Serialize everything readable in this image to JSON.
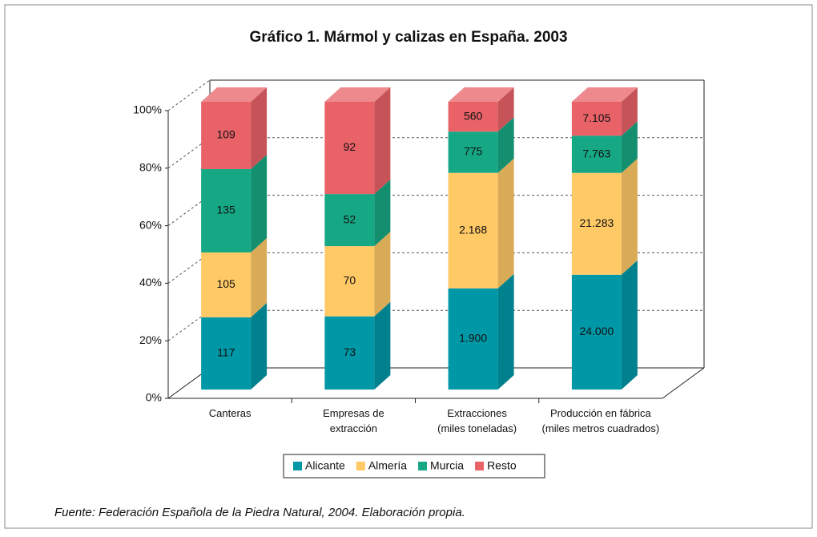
{
  "chart_data": {
    "type": "bar",
    "stacking": "percent",
    "title": "Gráfico 1. Mármol y calizas en España. 2003",
    "categories": [
      "Canteras",
      "Empresas de\nextracción",
      "Extracciones\n(miles toneladas)",
      "Producción en fábrica\n(miles metros cuadrados)"
    ],
    "series": [
      {
        "name": "Alicante",
        "color": "#0098a6",
        "values": [
          117,
          73,
          1900,
          24000
        ],
        "value_labels": [
          "117",
          "73",
          "1.900",
          "24.000"
        ]
      },
      {
        "name": "Almería",
        "color": "#ffc966",
        "values": [
          105,
          70,
          2168,
          21283
        ],
        "value_labels": [
          "105",
          "70",
          "2.168",
          "21.283"
        ]
      },
      {
        "name": "Murcia",
        "color": "#16a884",
        "values": [
          135,
          52,
          775,
          7763
        ],
        "value_labels": [
          "135",
          "52",
          "775",
          "7.763"
        ]
      },
      {
        "name": "Resto",
        "color": "#e86268",
        "values": [
          109,
          92,
          560,
          7105
        ],
        "value_labels": [
          "109",
          "92",
          "560",
          "7.105"
        ]
      }
    ],
    "ylim": [
      0,
      100
    ],
    "yticks": [
      {
        "value": 0,
        "label": "0%"
      },
      {
        "value": 20,
        "label": "20%"
      },
      {
        "value": 40,
        "label": "40%"
      },
      {
        "value": 60,
        "label": "60%"
      },
      {
        "value": 80,
        "label": "80%"
      },
      {
        "value": 100,
        "label": "100%"
      }
    ],
    "grid": true,
    "legend": "bottom",
    "source": "Fuente: Federación Española de la Piedra Natural, 2004. Elaboración propia."
  }
}
